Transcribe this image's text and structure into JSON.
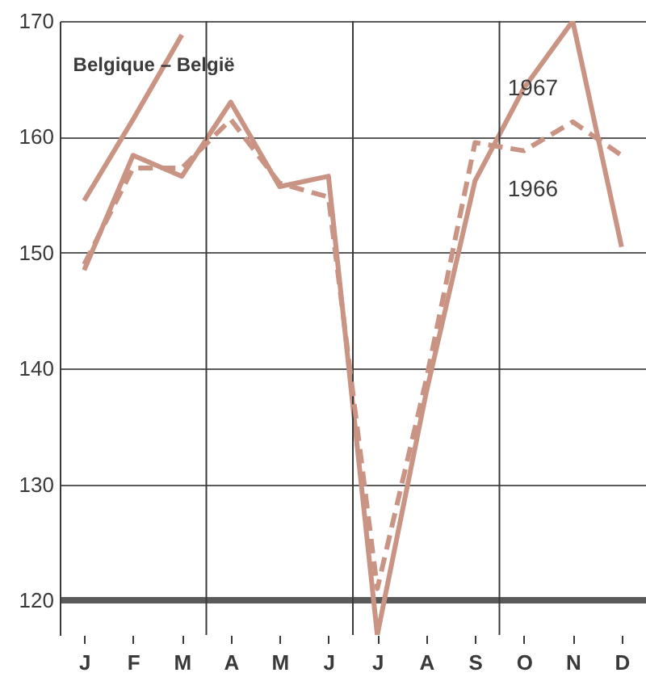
{
  "chart_data": {
    "type": "line",
    "title": "Belgique – België",
    "categories": [
      "J",
      "F",
      "M",
      "A",
      "M",
      "J",
      "J",
      "A",
      "S",
      "O",
      "N",
      "D"
    ],
    "ylim": [
      117,
      170
    ],
    "yticks": [
      120,
      130,
      140,
      150,
      160,
      170
    ],
    "grid": "y",
    "marker": "none",
    "series": [
      {
        "name": "1967",
        "color": "#c99484",
        "line_style": "solid",
        "values": [
          148.5,
          158.4,
          156.6,
          163,
          155.7,
          156.6,
          117,
          137.9,
          156.2,
          164.2,
          170,
          150.5
        ]
      },
      {
        "name": "1966",
        "color": "#c99484",
        "line_style": "dashed",
        "values": [
          149,
          157.3,
          157.3,
          161.5,
          156,
          154.8,
          121,
          139,
          159.5,
          158.8,
          161.3,
          158.4
        ]
      },
      {
        "color": "#c99484",
        "line_style": "solid",
        "values": [
          154.5,
          161.5,
          168.8,
          null,
          null,
          null,
          null,
          null,
          null,
          null,
          null,
          null
        ]
      }
    ]
  }
}
